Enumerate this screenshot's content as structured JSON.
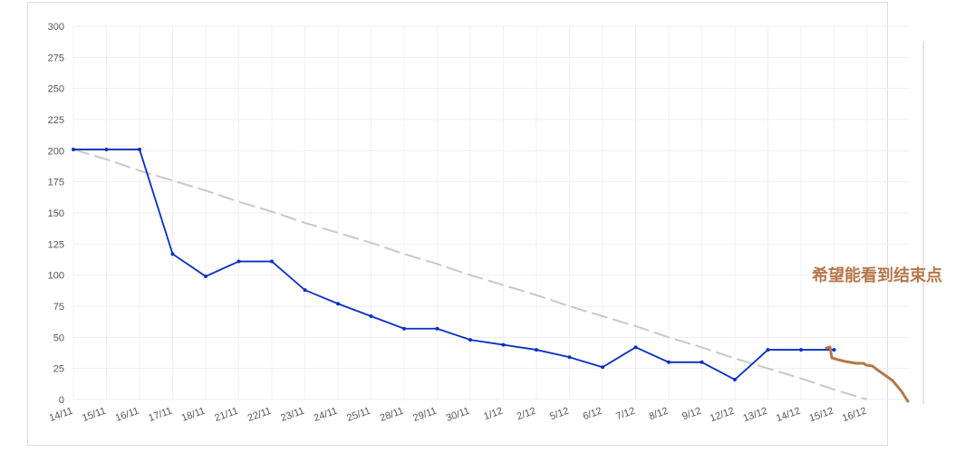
{
  "chart_data": {
    "type": "line",
    "categories": [
      "14/11",
      "15/11",
      "16/11",
      "17/11",
      "18/11",
      "21/11",
      "22/11",
      "23/11",
      "24/11",
      "25/11",
      "28/11",
      "29/11",
      "30/11",
      "1/12",
      "2/12",
      "5/12",
      "6/12",
      "7/12",
      "8/12",
      "9/12",
      "12/12",
      "13/12",
      "14/12",
      "15/12",
      "16/12"
    ],
    "series": [
      {
        "color": "#c8c8c8",
        "dashed": true,
        "values": [
          201,
          193,
          184,
          176,
          168,
          159,
          151,
          142,
          134,
          126,
          117,
          109,
          100,
          92,
          84,
          75,
          67,
          59,
          50,
          42,
          33,
          25,
          17,
          8,
          0
        ]
      },
      {
        "color": "#0a2fc2",
        "dashed": false,
        "values": [
          201,
          201,
          201,
          117,
          99,
          111,
          111,
          88,
          77,
          67,
          57,
          57,
          48,
          44,
          40,
          34,
          26,
          42,
          30,
          30,
          16,
          40,
          40,
          40,
          null
        ]
      }
    ],
    "ylim": [
      0,
      300
    ],
    "yticks": [
      0,
      25,
      50,
      75,
      100,
      125,
      150,
      175,
      200,
      225,
      250,
      275,
      300
    ],
    "grid": true,
    "annotation": "希望能看到结束点"
  }
}
